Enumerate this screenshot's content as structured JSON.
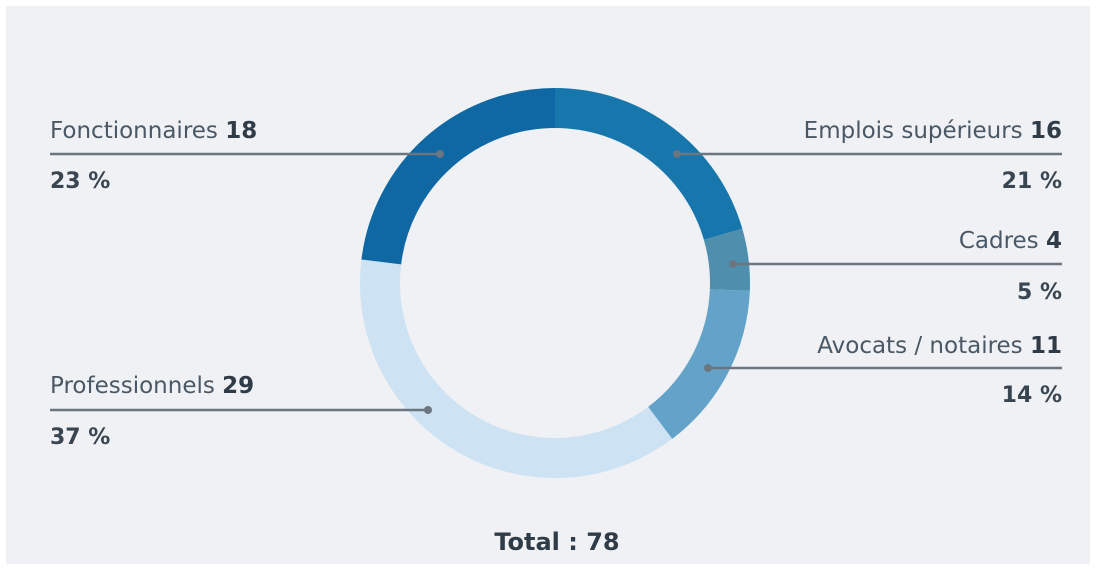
{
  "chart_data": {
    "type": "donut",
    "categories": [
      "Emplois supérieurs",
      "Cadres",
      "Avocats / notaires",
      "Professionnels",
      "Fonctionnaires"
    ],
    "values": [
      16,
      4,
      11,
      29,
      18
    ],
    "percent_labels": [
      "21 %",
      "5 %",
      "14 %",
      "37 %",
      "23 %"
    ],
    "colors": [
      "#1777ad",
      "#4f8fae",
      "#64a3c9",
      "#cde2f2",
      "#0f67a3"
    ],
    "total_label": "Total :",
    "total": 78
  }
}
